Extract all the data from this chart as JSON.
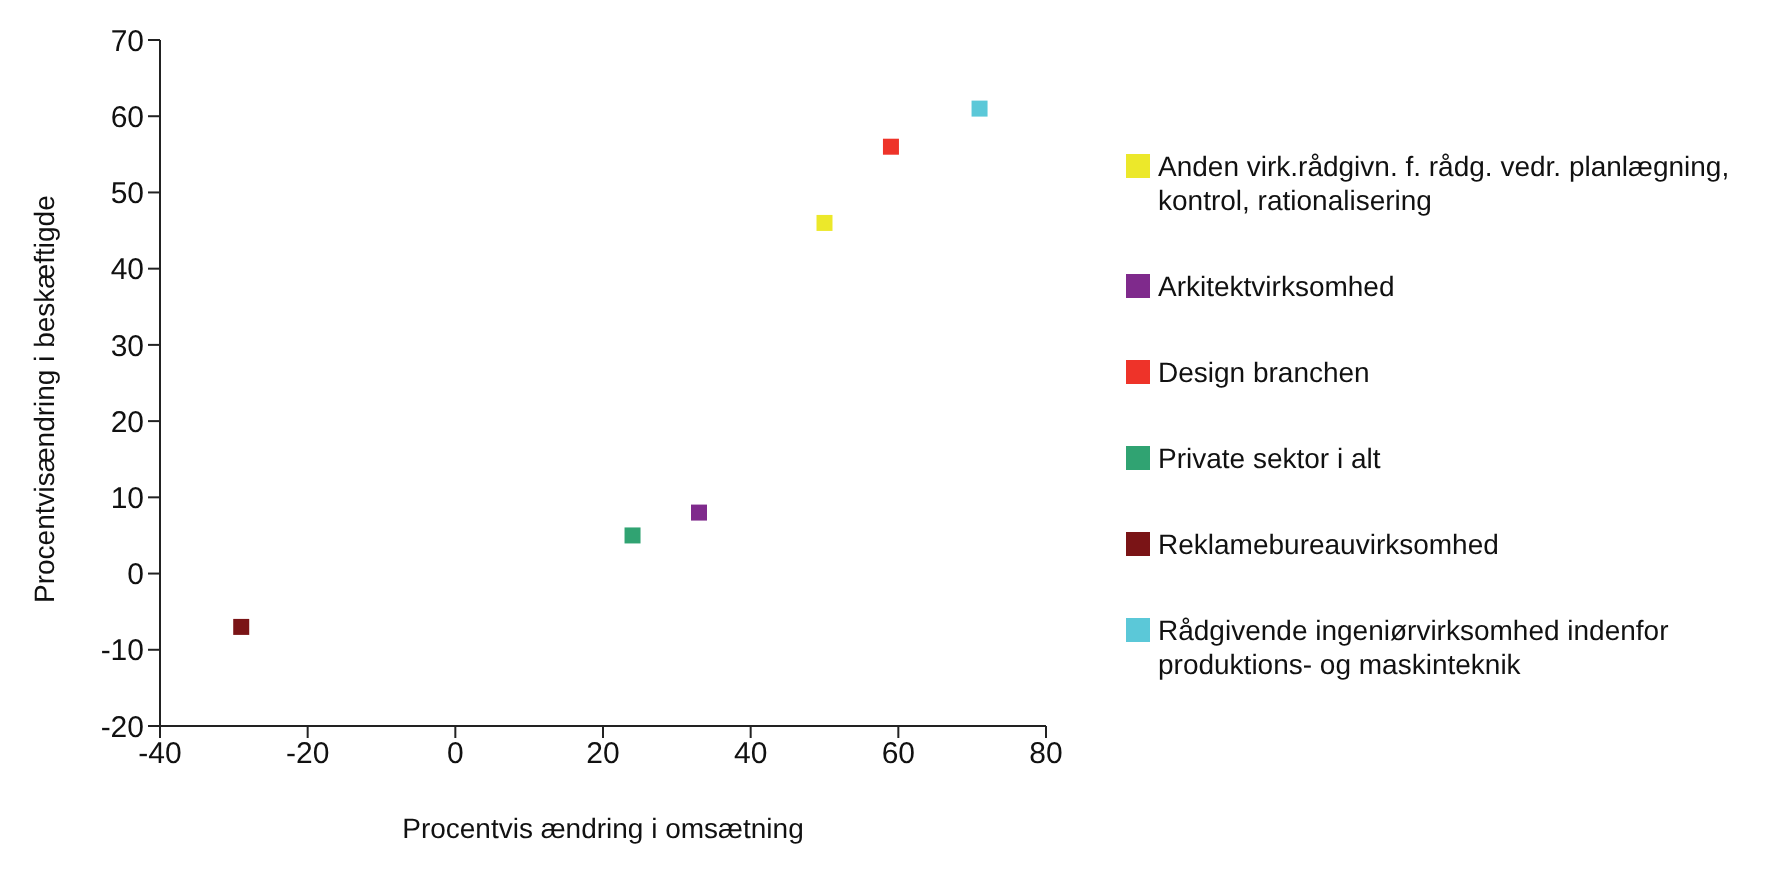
{
  "chart_data": {
    "type": "scatter",
    "xlabel": "Procentvis ændring i omsætning",
    "ylabel": "Procentvisændring i beskæftigde",
    "xlim": [
      -40,
      80
    ],
    "xticks": [
      -40,
      -20,
      0,
      20,
      40,
      60,
      80
    ],
    "ylim": [
      -20,
      70
    ],
    "yticks": [
      -20,
      -10,
      0,
      10,
      20,
      30,
      40,
      50,
      60,
      70
    ],
    "grid": false,
    "legend": "right",
    "marker": "square",
    "series": [
      {
        "name": "Anden virk.rådgivn. f. rådg. vedr. planlægning, kontrol, rationalisering",
        "color": "#ece82a",
        "x": [
          50
        ],
        "values": [
          46
        ]
      },
      {
        "name": "Rådgivende ingeniørvirksomhed indenfor produktions- og maskinteknik",
        "color": "#5bc8d8",
        "x": [
          71
        ],
        "values": [
          61
        ]
      },
      {
        "name": "Arkitektvirksomhed",
        "color": "#7f2a8c",
        "x": [
          33
        ],
        "values": [
          8
        ]
      },
      {
        "name": "Reklamebureauvirksomhed",
        "color": "#7a1416",
        "x": [
          -29
        ],
        "values": [
          -7
        ]
      },
      {
        "name": "Design branchen",
        "color": "#ee3329",
        "x": [
          59
        ],
        "values": [
          56
        ]
      },
      {
        "name": "Private sektor i alt",
        "color": "#30a372",
        "x": [
          24
        ],
        "values": [
          5
        ]
      }
    ]
  }
}
